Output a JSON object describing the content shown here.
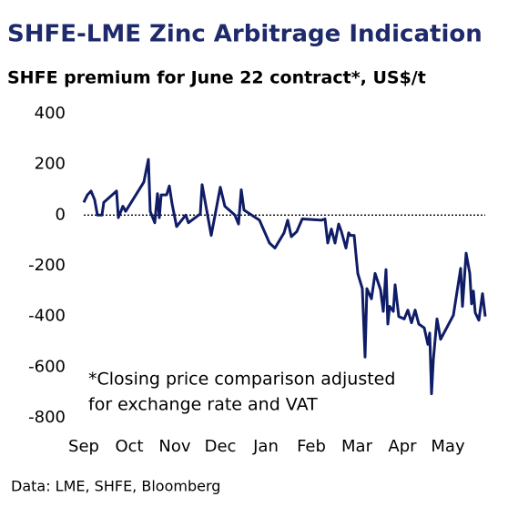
{
  "chart_data": {
    "type": "line",
    "title": "SHFE-LME Zinc Arbitrage Indication",
    "subtitle": "SHFE premium for June 22 contract*, US$/t",
    "annotation": [
      "*Closing price comparison adjusted",
      "for exchange rate and VAT"
    ],
    "source": "Data: LME, SHFE, Bloomberg",
    "x": [
      0,
      0.08,
      0.16,
      0.24,
      0.3,
      0.4,
      0.44,
      0.72,
      0.76,
      0.86,
      0.92,
      1.32,
      1.42,
      1.46,
      1.56,
      1.62,
      1.66,
      1.7,
      1.82,
      1.88,
      1.94,
      2.04,
      2.24,
      2.3,
      2.56,
      2.6,
      2.8,
      3.0,
      3.1,
      3.32,
      3.4,
      3.46,
      3.52,
      3.86,
      4.08,
      4.2,
      4.4,
      4.48,
      4.56,
      4.68,
      4.8,
      5.22,
      5.3,
      5.36,
      5.44,
      5.52,
      5.6,
      5.66,
      5.76,
      5.82,
      5.86,
      5.94,
      6.02,
      6.12,
      6.18,
      6.22,
      6.32,
      6.4,
      6.52,
      6.58,
      6.64,
      6.68,
      6.72,
      6.8,
      6.84,
      6.92,
      7.04,
      7.12,
      7.2,
      7.28,
      7.36,
      7.48,
      7.56,
      7.6,
      7.64,
      7.68,
      7.76,
      7.84,
      8.12,
      8.28,
      8.32,
      8.4,
      8.48,
      8.52,
      8.56,
      8.6,
      8.68,
      8.76,
      8.82
    ],
    "series": [
      {
        "name": "SHFE premium",
        "color": "#0f1c66",
        "values": [
          50,
          80,
          95,
          60,
          0,
          0,
          50,
          95,
          -10,
          35,
          15,
          130,
          220,
          15,
          -30,
          85,
          -10,
          80,
          80,
          115,
          45,
          -45,
          0,
          -30,
          5,
          120,
          -80,
          110,
          35,
          0,
          -35,
          100,
          20,
          -20,
          -110,
          -130,
          -70,
          -20,
          -85,
          -65,
          -15,
          -20,
          -15,
          -110,
          -55,
          -110,
          -35,
          -65,
          -130,
          -70,
          -80,
          -80,
          -230,
          -290,
          -560,
          -290,
          -330,
          -230,
          -295,
          -380,
          -215,
          -430,
          -360,
          -380,
          -275,
          -400,
          -410,
          -375,
          -425,
          -375,
          -430,
          -445,
          -510,
          -465,
          -705,
          -570,
          -410,
          -490,
          -395,
          -210,
          -360,
          -150,
          -230,
          -350,
          -300,
          -385,
          -415,
          -310,
          -400
        ]
      }
    ],
    "xlim": [
      0,
      8.82
    ],
    "xticks": [
      {
        "value": 0,
        "label": "Sep"
      },
      {
        "value": 1,
        "label": "Oct"
      },
      {
        "value": 2,
        "label": "Nov"
      },
      {
        "value": 3,
        "label": "Dec"
      },
      {
        "value": 4,
        "label": "Jan"
      },
      {
        "value": 5,
        "label": "Feb"
      },
      {
        "value": 6,
        "label": "Mar"
      },
      {
        "value": 7,
        "label": "Apr"
      },
      {
        "value": 8,
        "label": "May"
      }
    ],
    "ylim": [
      -800,
      400
    ],
    "yticks": [
      400,
      200,
      0,
      -200,
      -400,
      -600,
      -800
    ],
    "zero_line": true,
    "grid": false
  }
}
